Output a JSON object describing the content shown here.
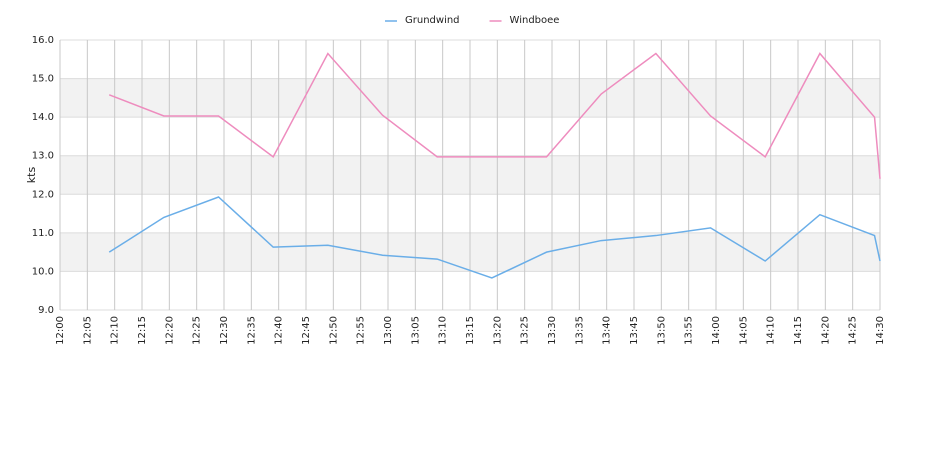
{
  "chart_data": {
    "type": "line",
    "y_label": "kts",
    "x": [
      "12:09",
      "12:19",
      "12:29",
      "12:39",
      "12:49",
      "12:59",
      "13:09",
      "13:19",
      "13:29",
      "13:39",
      "13:49",
      "13:59",
      "14:09",
      "14:19",
      "14:29",
      "14:30"
    ],
    "series": [
      {
        "name": "Grundwind",
        "color": "#6aaee8",
        "values": [
          10.5,
          11.4,
          11.93,
          10.63,
          10.68,
          10.42,
          10.32,
          9.83,
          10.5,
          10.8,
          10.93,
          11.13,
          10.27,
          11.47,
          10.93,
          10.27
        ]
      },
      {
        "name": "Windboee",
        "color": "#ee8cbe",
        "values": [
          14.58,
          14.03,
          14.03,
          12.97,
          15.65,
          14.05,
          12.97,
          12.97,
          12.97,
          14.6,
          15.65,
          14.03,
          12.97,
          15.65,
          14.0,
          12.4
        ]
      }
    ],
    "xlim": [
      "12:00",
      "14:30"
    ],
    "xticks": [
      "12:00",
      "12:05",
      "12:10",
      "12:15",
      "12:20",
      "12:25",
      "12:30",
      "12:35",
      "12:40",
      "12:45",
      "12:50",
      "12:55",
      "13:00",
      "13:05",
      "13:10",
      "13:15",
      "13:20",
      "13:25",
      "13:30",
      "13:35",
      "13:40",
      "13:45",
      "13:50",
      "13:55",
      "14:00",
      "14:05",
      "14:10",
      "14:15",
      "14:20",
      "14:25",
      "14:30"
    ],
    "ylim": [
      9,
      16
    ],
    "yticks": [
      {
        "value": 9,
        "label": "9.0"
      },
      {
        "value": 10,
        "label": "10.0"
      },
      {
        "value": 11,
        "label": "11.0"
      },
      {
        "value": 12,
        "label": "12.0"
      },
      {
        "value": 13,
        "label": "13.0"
      },
      {
        "value": 14,
        "label": "14.0"
      },
      {
        "value": 15,
        "label": "15.0"
      },
      {
        "value": 16,
        "label": "16.0"
      }
    ],
    "grid": true,
    "band_color": "#f2f2f2",
    "legend": "top"
  }
}
